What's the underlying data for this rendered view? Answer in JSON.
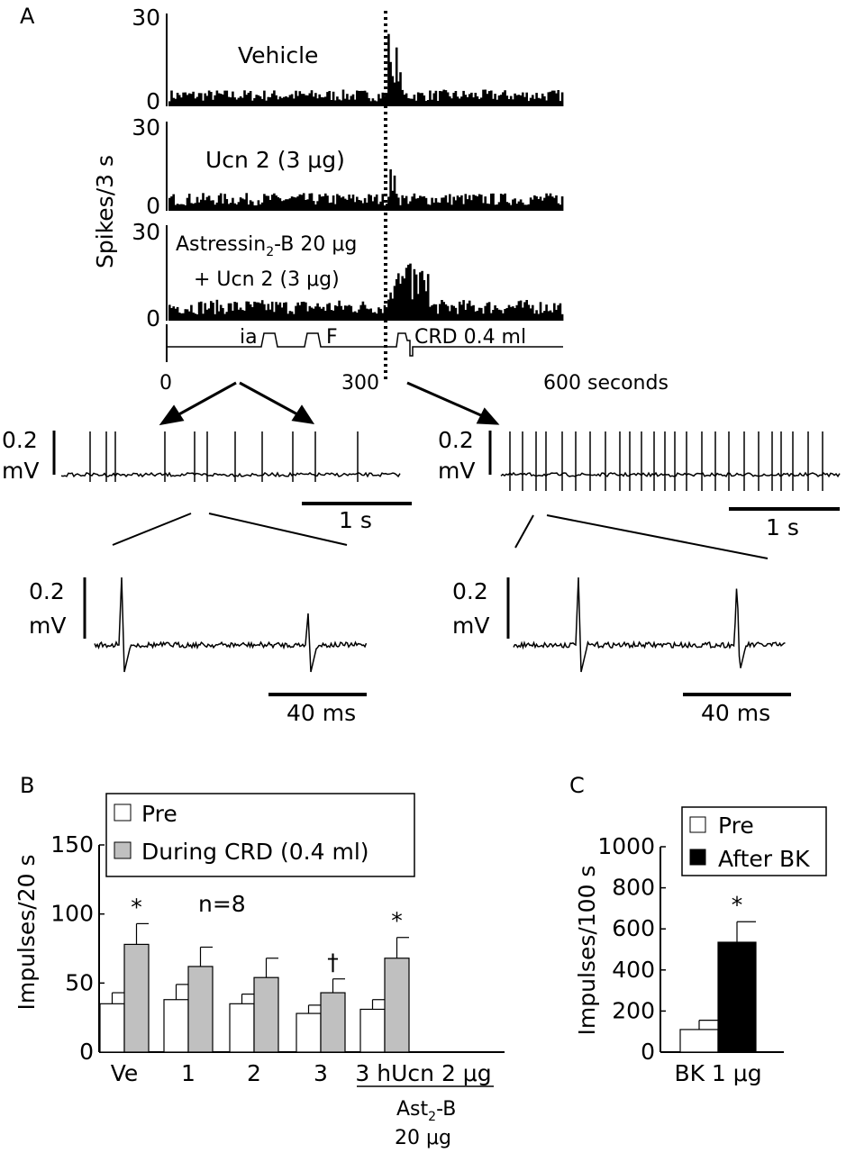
{
  "panel_labels": {
    "a": "A",
    "b": "B",
    "c": "C"
  },
  "panel_a": {
    "y_label": "Spikes/3 s",
    "traces": [
      {
        "label": "Vehicle",
        "y_top": "30",
        "y_bottom": "0"
      },
      {
        "label": "Ucn 2 (3 μg)",
        "y_top": "30",
        "y_bottom": "0"
      },
      {
        "label_line1": "Astressin",
        "label_sub": "2",
        "label_line1_rest": "-B 20 μg",
        "label_line2": "+ Ucn 2 (3 μg)",
        "y_top": "30",
        "y_bottom": "0"
      }
    ],
    "event_labels": {
      "ia": "ia",
      "f": "F",
      "crd": "CRD 0.4 ml"
    },
    "x_ticks": {
      "t0": "0",
      "t300": "300",
      "t600": "600 seconds"
    },
    "recordings": {
      "left": {
        "v_scale": "0.2",
        "v_unit": "mV",
        "time_scale": "1 s"
      },
      "right": {
        "v_scale": "0.2",
        "v_unit": "mV",
        "time_scale": "1 s"
      }
    },
    "waveforms": {
      "left": {
        "v_scale": "0.2",
        "v_unit": "mV",
        "time_scale": "40 ms"
      },
      "right": {
        "v_scale": "0.2",
        "v_unit": "mV",
        "time_scale": "40 ms"
      }
    }
  },
  "chart_data": [
    {
      "type": "bar",
      "panel": "B",
      "ylabel": "Impulses/20 s",
      "ylim": [
        0,
        150
      ],
      "yticks": [
        "0",
        "50",
        "100",
        "150"
      ],
      "categories": [
        "Ve",
        "1",
        "2",
        "3",
        "3 hUcn 2 μg"
      ],
      "category_group_label_line1": "Ast",
      "category_group_label_sub": "2",
      "category_group_label_rest": "-B",
      "category_group_label_line2": "20 μg",
      "annotation_n": "n=8",
      "significance": [
        "*",
        "",
        "",
        "†",
        "*"
      ],
      "series": [
        {
          "name": "Pre",
          "values": [
            35,
            38,
            35,
            28,
            31
          ],
          "errors": [
            8,
            11,
            7,
            6,
            7
          ],
          "color": "#ffffff"
        },
        {
          "name": "During CRD (0.4 ml)",
          "values": [
            78,
            62,
            54,
            43,
            68
          ],
          "errors": [
            15,
            14,
            14,
            10,
            15
          ],
          "color": "#c0c0c0"
        }
      ],
      "legend": "top"
    },
    {
      "type": "bar",
      "panel": "C",
      "ylabel": "Impulses/100 s",
      "ylim": [
        0,
        1000
      ],
      "yticks": [
        "0",
        "200",
        "400",
        "600",
        "800",
        "1000"
      ],
      "categories": [
        "BK 1 μg"
      ],
      "significance": [
        "*"
      ],
      "series": [
        {
          "name": "Pre",
          "values": [
            110
          ],
          "errors": [
            45
          ],
          "color": "#ffffff"
        },
        {
          "name": "After BK",
          "values": [
            535
          ],
          "errors": [
            100
          ],
          "color": "#000000"
        }
      ],
      "legend": "top-right"
    }
  ]
}
